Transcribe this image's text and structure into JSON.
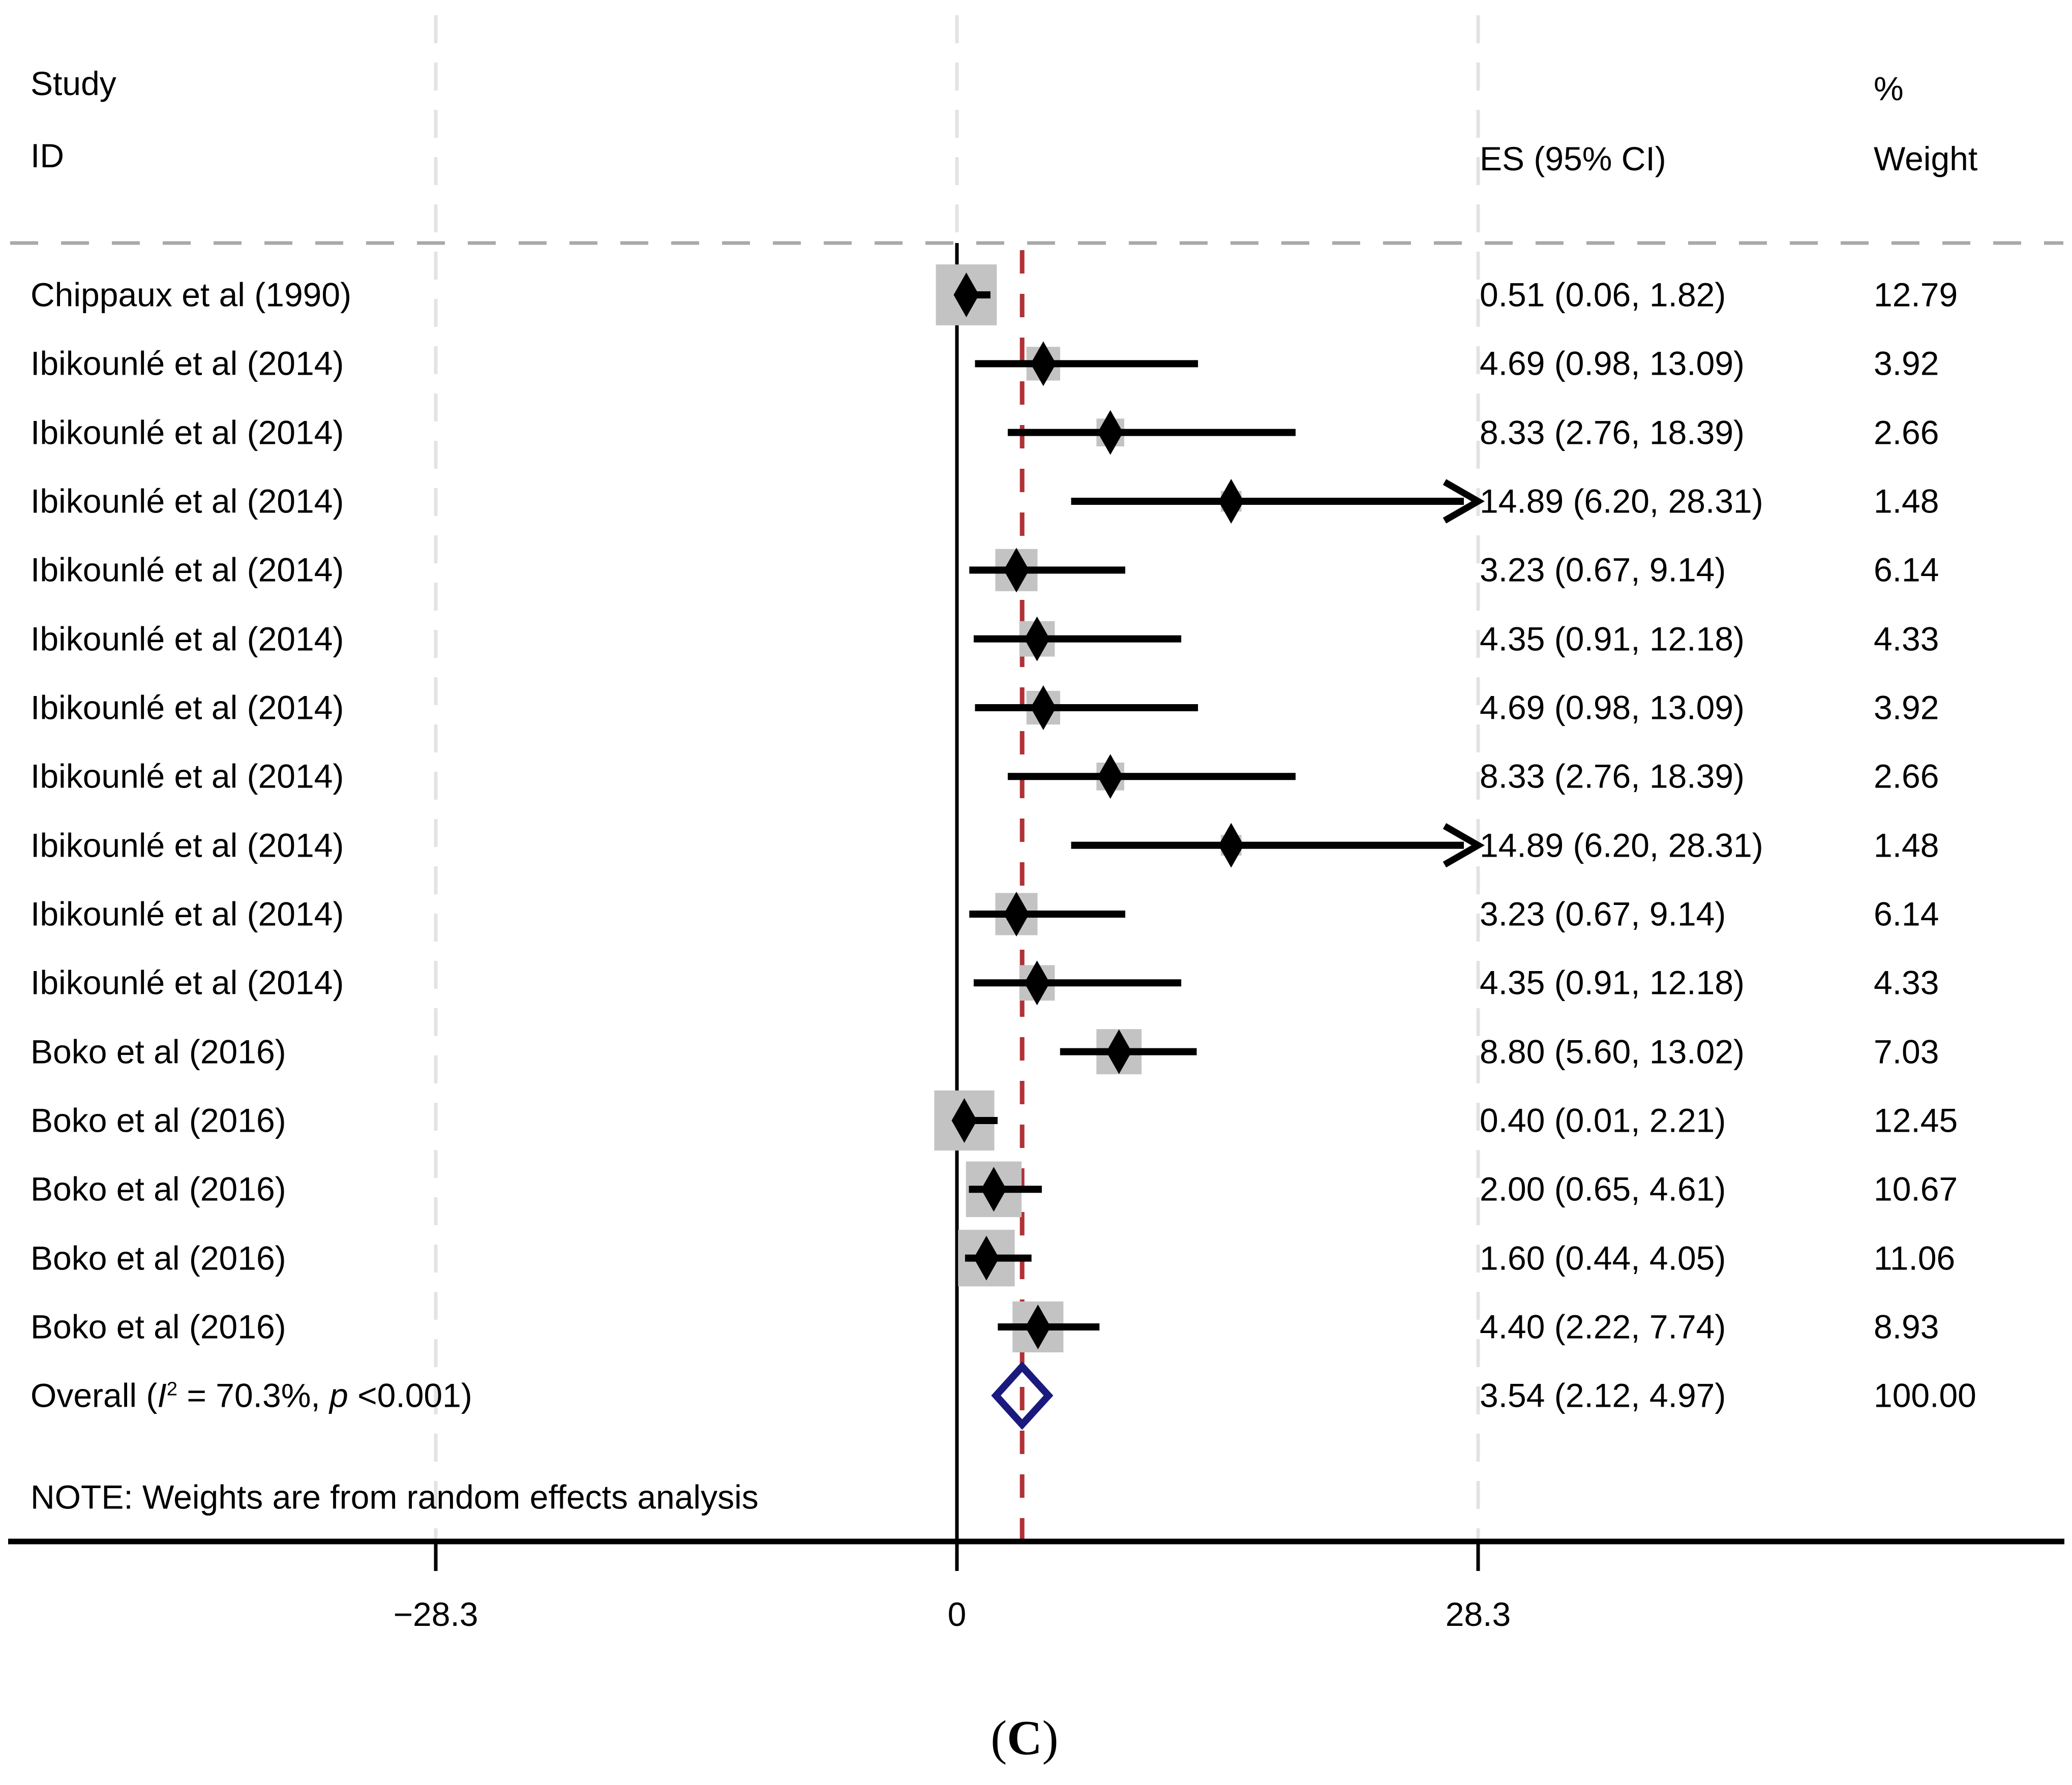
{
  "chart_data": {
    "type": "forest",
    "title": "",
    "columns": {
      "study_header_line1": "Study",
      "study_header_line2": "ID",
      "es_header": "ES (95% CI)",
      "weight_header_line1": "%",
      "weight_header_line2": "Weight"
    },
    "x_axis": {
      "ticks": [
        {
          "label": "−28.3",
          "value": -28.3
        },
        {
          "label": "0",
          "value": 0
        },
        {
          "label": "28.3",
          "value": 28.3
        }
      ]
    },
    "reference_line_value": 3.54,
    "studies": [
      {
        "label": "Chippaux et al (1990)",
        "es": 0.51,
        "ci_low": 0.06,
        "ci_high": 1.82,
        "es_ci_text": "0.51 (0.06, 1.82)",
        "weight": 12.79,
        "weight_text": "12.79",
        "arrow": false
      },
      {
        "label": "Ibikounlé et al (2014)",
        "es": 4.69,
        "ci_low": 0.98,
        "ci_high": 13.09,
        "es_ci_text": "4.69 (0.98, 13.09)",
        "weight": 3.92,
        "weight_text": "3.92",
        "arrow": false
      },
      {
        "label": "Ibikounlé et al (2014)",
        "es": 8.33,
        "ci_low": 2.76,
        "ci_high": 18.39,
        "es_ci_text": "8.33 (2.76, 18.39)",
        "weight": 2.66,
        "weight_text": "2.66",
        "arrow": false
      },
      {
        "label": "Ibikounlé et al (2014)",
        "es": 14.89,
        "ci_low": 6.2,
        "ci_high": 28.31,
        "es_ci_text": "14.89 (6.20, 28.31)",
        "weight": 1.48,
        "weight_text": "1.48",
        "arrow": true
      },
      {
        "label": "Ibikounlé et al (2014)",
        "es": 3.23,
        "ci_low": 0.67,
        "ci_high": 9.14,
        "es_ci_text": "3.23 (0.67, 9.14)",
        "weight": 6.14,
        "weight_text": "6.14",
        "arrow": false
      },
      {
        "label": "Ibikounlé et al (2014)",
        "es": 4.35,
        "ci_low": 0.91,
        "ci_high": 12.18,
        "es_ci_text": "4.35 (0.91, 12.18)",
        "weight": 4.33,
        "weight_text": "4.33",
        "arrow": false
      },
      {
        "label": "Ibikounlé et al (2014)",
        "es": 4.69,
        "ci_low": 0.98,
        "ci_high": 13.09,
        "es_ci_text": "4.69 (0.98, 13.09)",
        "weight": 3.92,
        "weight_text": "3.92",
        "arrow": false
      },
      {
        "label": "Ibikounlé et al (2014)",
        "es": 8.33,
        "ci_low": 2.76,
        "ci_high": 18.39,
        "es_ci_text": "8.33 (2.76, 18.39)",
        "weight": 2.66,
        "weight_text": "2.66",
        "arrow": false
      },
      {
        "label": "Ibikounlé et al (2014)",
        "es": 14.89,
        "ci_low": 6.2,
        "ci_high": 28.31,
        "es_ci_text": "14.89 (6.20, 28.31)",
        "weight": 1.48,
        "weight_text": "1.48",
        "arrow": true
      },
      {
        "label": "Ibikounlé et al (2014)",
        "es": 3.23,
        "ci_low": 0.67,
        "ci_high": 9.14,
        "es_ci_text": "3.23 (0.67, 9.14)",
        "weight": 6.14,
        "weight_text": "6.14",
        "arrow": false
      },
      {
        "label": "Ibikounlé et al (2014)",
        "es": 4.35,
        "ci_low": 0.91,
        "ci_high": 12.18,
        "es_ci_text": "4.35 (0.91, 12.18)",
        "weight": 4.33,
        "weight_text": "4.33",
        "arrow": false
      },
      {
        "label": "Boko et al (2016)",
        "es": 8.8,
        "ci_low": 5.6,
        "ci_high": 13.02,
        "es_ci_text": "8.80 (5.60, 13.02)",
        "weight": 7.03,
        "weight_text": "7.03",
        "arrow": false
      },
      {
        "label": "Boko et al (2016)",
        "es": 0.4,
        "ci_low": 0.01,
        "ci_high": 2.21,
        "es_ci_text": "0.40 (0.01, 2.21)",
        "weight": 12.45,
        "weight_text": "12.45",
        "arrow": false
      },
      {
        "label": "Boko et al (2016)",
        "es": 2.0,
        "ci_low": 0.65,
        "ci_high": 4.61,
        "es_ci_text": "2.00 (0.65, 4.61)",
        "weight": 10.67,
        "weight_text": "10.67",
        "arrow": false
      },
      {
        "label": "Boko et al (2016)",
        "es": 1.6,
        "ci_low": 0.44,
        "ci_high": 4.05,
        "es_ci_text": "1.60 (0.44, 4.05)",
        "weight": 11.06,
        "weight_text": "11.06",
        "arrow": false
      },
      {
        "label": "Boko et al (2016)",
        "es": 4.4,
        "ci_low": 2.22,
        "ci_high": 7.74,
        "es_ci_text": "4.40 (2.22, 7.74)",
        "weight": 8.93,
        "weight_text": "8.93",
        "arrow": false
      }
    ],
    "overall": {
      "label_prefix": "Overall (",
      "stat_i": "I",
      "stat_i_sup": "2",
      "stat_mid": " = 70.3%, ",
      "stat_p": "p",
      "stat_suffix": " <0.001)",
      "es": 3.54,
      "ci_low": 2.12,
      "ci_high": 4.97,
      "es_ci_text": "3.54 (2.12, 4.97)",
      "weight_text": "100.00"
    },
    "note": "NOTE: Weights are from random effects analysis",
    "caption": {
      "prefix": "(",
      "letter": "C",
      "suffix": ")"
    },
    "colors": {
      "square_fill": "#c3c3c3",
      "point_marker": "#000000",
      "ci_line": "#000000",
      "overall_diamond_stroke": "#1a1a7e",
      "reference_line": "#b03236",
      "gridline": "#e3e3e3",
      "separator": "#a9a9a9",
      "axis": "#000000"
    }
  }
}
